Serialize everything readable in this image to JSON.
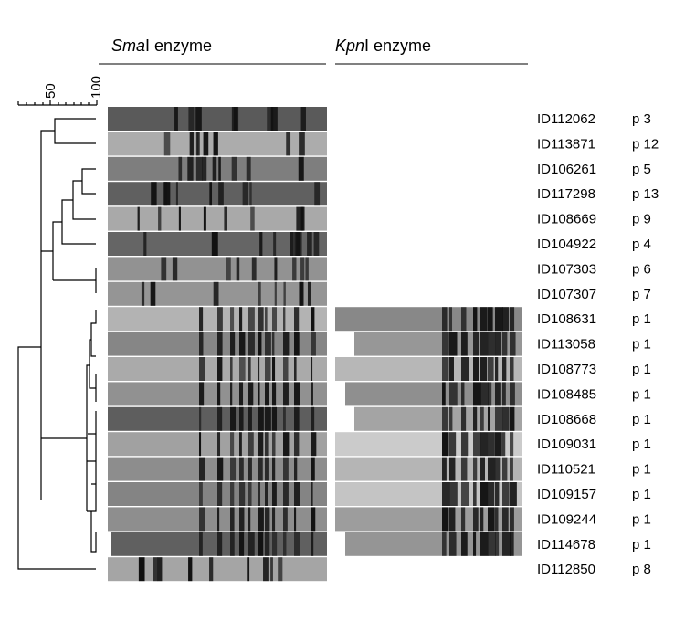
{
  "headers": [
    {
      "italic": "Sma",
      "rest": "I enzyme"
    },
    {
      "italic": "Kpn",
      "rest": "I enzyme"
    }
  ],
  "scale": {
    "labels": [
      "50",
      "100"
    ]
  },
  "rows": [
    {
      "id": "ID112062",
      "pattern": "p 3"
    },
    {
      "id": "ID113871",
      "pattern": "p 12"
    },
    {
      "id": "ID106261",
      "pattern": "p 5"
    },
    {
      "id": "ID117298",
      "pattern": "p 13"
    },
    {
      "id": "ID108669",
      "pattern": "p 9"
    },
    {
      "id": "ID104922",
      "pattern": "p 4"
    },
    {
      "id": "ID107303",
      "pattern": "p 6"
    },
    {
      "id": "ID107307",
      "pattern": "p 7"
    },
    {
      "id": "ID108631",
      "pattern": "p 1"
    },
    {
      "id": "ID113058",
      "pattern": "p 1"
    },
    {
      "id": "ID108773",
      "pattern": "p 1"
    },
    {
      "id": "ID108485",
      "pattern": "p 1"
    },
    {
      "id": "ID108668",
      "pattern": "p 1"
    },
    {
      "id": "ID109031",
      "pattern": "p 1"
    },
    {
      "id": "ID110521",
      "pattern": "p 1"
    },
    {
      "id": "ID109157",
      "pattern": "p 1"
    },
    {
      "id": "ID109244",
      "pattern": "p 1"
    },
    {
      "id": "ID114678",
      "pattern": "p 1"
    },
    {
      "id": "ID112850",
      "pattern": "p 8"
    }
  ]
}
